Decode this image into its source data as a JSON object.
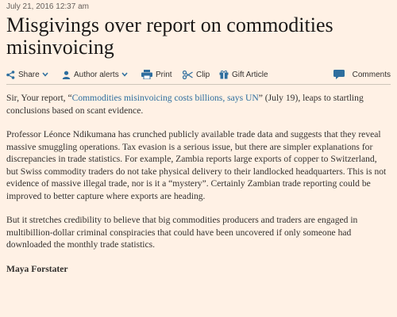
{
  "article": {
    "date": "July 21, 2016 12:37 am",
    "title": "Misgivings over report on commodities misinvoicing",
    "toolbar": {
      "share": "Share",
      "author_alerts": "Author alerts",
      "print": "Print",
      "clip": "Clip",
      "gift_article": "Gift Article",
      "comments": "Comments"
    },
    "p1_before": "Sir, Your report, “",
    "p1_link": "Commodities misinvoicing costs billions, says UN",
    "p1_after": "” (July 19), leaps to startling conclusions based on scant evidence.",
    "p2": "Professor Léonce Ndikumana has crunched publicly available trade data and suggests that they reveal massive smuggling operations. Tax evasion is a serious issue, but there are simpler explanations for discrepancies in trade statistics. For example, Zambia reports large exports of copper to Switzerland, but Swiss commodity traders do not take physical delivery to their landlocked headquarters. This is not evidence of massive illegal trade, nor is it a “mystery”. Certainly Zambian trade reporting could be improved to better capture where exports are heading.",
    "p3": "But it stretches credibility to believe that big commodities producers and traders are engaged in multibillion-dollar criminal conspiracies that could have been uncovered if only someone had downloaded the monthly trade statistics.",
    "author": "Maya Forstater"
  },
  "colors": {
    "background": "#fff1e5",
    "link": "#2e6e9e",
    "icon": "#2e6e9e",
    "text": "#33302e"
  }
}
